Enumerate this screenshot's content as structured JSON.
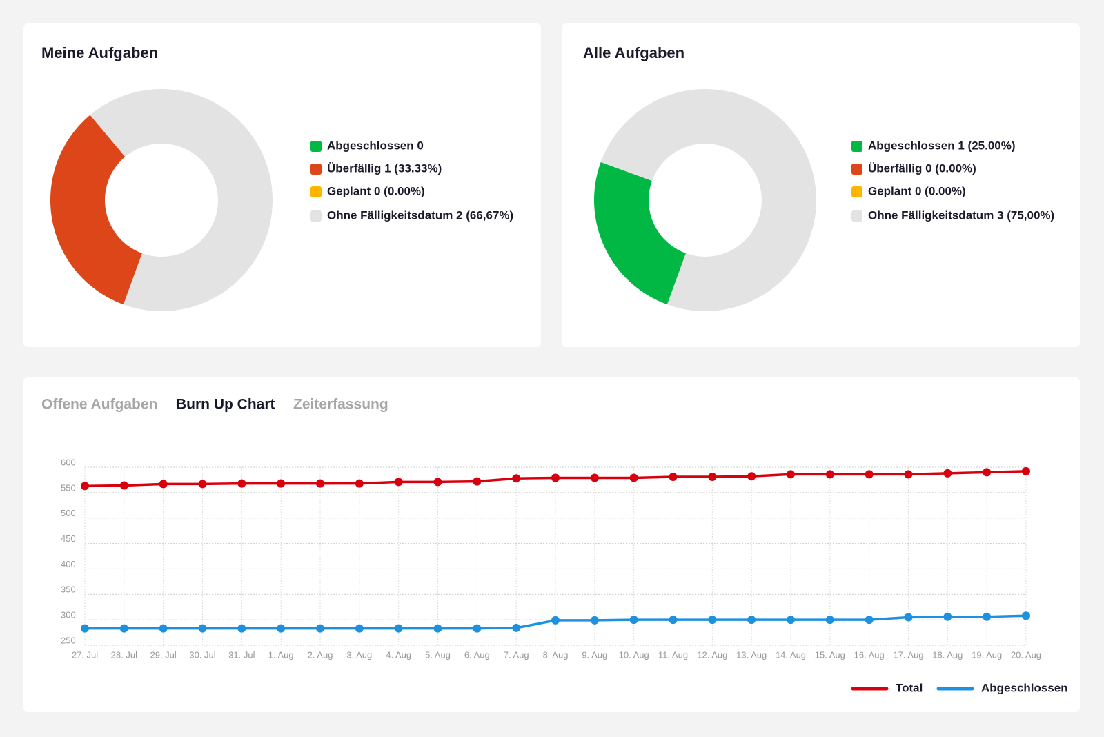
{
  "tabs": [
    "Offene Aufgaben",
    "Burn Up Chart",
    "Zeiterfassung"
  ],
  "chart_data": [
    {
      "type": "donut",
      "title": "Meine Aufgaben",
      "labels": [
        "Abgeschlossen 0",
        "Überfällig 1 (33.33%)",
        "Geplant 0 (0.00%)",
        "Ohne Fälligkeitsdatum 2 (66,67%)"
      ],
      "values": [
        0,
        1,
        0,
        2
      ],
      "colors": [
        "#00b843",
        "#dc4618",
        "#ffb400",
        "#e3e3e3"
      ]
    },
    {
      "type": "donut",
      "title": "Alle Aufgaben",
      "labels": [
        "Abgeschlossen 1 (25.00%)",
        "Überfällig 0 (0.00%)",
        "Geplant 0 (0.00%)",
        "Ohne Fälligkeitsdatum 3 (75,00%)"
      ],
      "values": [
        1,
        0,
        0,
        3
      ],
      "colors": [
        "#00b843",
        "#dc4618",
        "#ffb400",
        "#e3e3e3"
      ]
    },
    {
      "type": "line",
      "categories": [
        "27. Jul",
        "28. Jul",
        "29. Jul",
        "30. Jul",
        "31. Jul",
        "1. Aug",
        "2. Aug",
        "3. Aug",
        "4. Aug",
        "5. Aug",
        "6. Aug",
        "7. Aug",
        "8. Aug",
        "9. Aug",
        "10. Aug",
        "11. Aug",
        "12. Aug",
        "13. Aug",
        "14. Aug",
        "15. Aug",
        "16. Aug",
        "17. Aug",
        "18. Aug",
        "19. Aug",
        "20. Aug"
      ],
      "series": [
        {
          "name": "Total",
          "color": "#d9000d",
          "values": [
            563,
            564,
            567,
            567,
            568,
            568,
            568,
            568,
            571,
            571,
            572,
            578,
            579,
            579,
            579,
            581,
            581,
            582,
            586,
            586,
            586,
            586,
            588,
            590,
            592
          ]
        },
        {
          "name": "Abgeschlossen",
          "color": "#1e90e0",
          "values": [
            283,
            283,
            283,
            283,
            283,
            283,
            283,
            283,
            283,
            283,
            283,
            284,
            299,
            299,
            300,
            300,
            300,
            300,
            300,
            300,
            300,
            305,
            306,
            306,
            308
          ]
        }
      ],
      "ylim": [
        250,
        600
      ],
      "yticks": [
        250,
        300,
        350,
        400,
        450,
        500,
        550,
        600
      ],
      "grid": true
    }
  ]
}
